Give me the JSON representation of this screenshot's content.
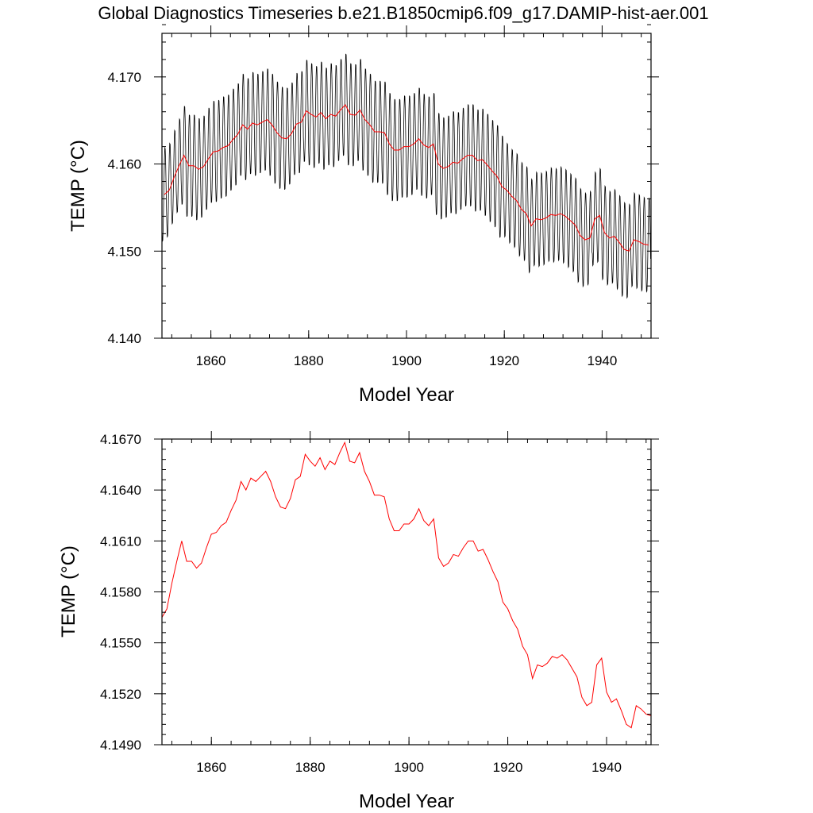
{
  "figure": {
    "title": "Global Diagnostics Timeseries b.e21.B1850cmip6.f09_g17.DAMIP-hist-aer.001"
  },
  "colors": {
    "monthly_series": "#000000",
    "annual_series": "#ff0000",
    "frame": "#000000",
    "background": "#ffffff"
  },
  "chart_data": [
    {
      "type": "line",
      "title": "",
      "xlabel": "Model Year",
      "ylabel": "TEMP (°C)",
      "xlim": [
        1850,
        1950
      ],
      "ylim": [
        4.14,
        4.175
      ],
      "x_ticks": [
        1860,
        1880,
        1900,
        1920,
        1940
      ],
      "x_tick_labels": [
        "1860",
        "1880",
        "1900",
        "1920",
        "1940"
      ],
      "y_ticks": [
        4.14,
        4.15,
        4.16,
        4.17
      ],
      "y_tick_labels": [
        "4.140",
        "4.150",
        "4.160",
        "4.170"
      ],
      "y_minor_step": 0.002,
      "x_minor_step": 4,
      "grid": false,
      "series": [
        {
          "style": "monthly",
          "color": "#000000",
          "amplitude_by_year": [
            0.0055,
            0.0055,
            0.0055,
            0.0055,
            0.0058,
            0.006,
            0.006,
            0.006,
            0.006,
            0.006,
            0.006,
            0.006,
            0.006,
            0.006,
            0.006,
            0.006,
            0.006,
            0.006,
            0.006,
            0.006,
            0.006,
            0.006,
            0.006,
            0.006,
            0.006,
            0.006,
            0.006,
            0.006,
            0.006,
            0.006,
            0.006,
            0.006,
            0.006,
            0.006,
            0.006,
            0.006,
            0.006,
            0.006,
            0.006,
            0.006,
            0.006,
            0.006,
            0.006,
            0.006,
            0.006,
            0.006,
            0.006,
            0.006,
            0.006,
            0.006,
            0.006,
            0.006,
            0.006,
            0.006,
            0.006,
            0.006,
            0.006,
            0.006,
            0.006,
            0.006,
            0.006,
            0.006,
            0.006,
            0.006,
            0.006,
            0.006,
            0.006,
            0.006,
            0.006,
            0.006,
            0.0055,
            0.0055,
            0.0055,
            0.0055,
            0.0055,
            0.0055,
            0.0055,
            0.0055,
            0.0055,
            0.0055,
            0.0055,
            0.0055,
            0.0055,
            0.0055,
            0.0055,
            0.0055,
            0.0055,
            0.0055,
            0.0055,
            0.0055,
            0.0055,
            0.0055,
            0.0055,
            0.0055,
            0.0055,
            0.0055,
            0.0055,
            0.0055,
            0.0055,
            0.0055
          ]
        },
        {
          "style": "annual",
          "color": "#ff0000"
        }
      ]
    },
    {
      "type": "line",
      "title": "",
      "xlabel": "Model Year",
      "ylabel": "TEMP (°C)",
      "xlim": [
        1850,
        1949
      ],
      "ylim": [
        4.149,
        4.167
      ],
      "x_ticks": [
        1860,
        1880,
        1900,
        1920,
        1940
      ],
      "x_tick_labels": [
        "1860",
        "1880",
        "1900",
        "1920",
        "1940"
      ],
      "y_ticks": [
        4.149,
        4.152,
        4.155,
        4.158,
        4.161,
        4.164,
        4.167
      ],
      "y_tick_labels": [
        "4.1490",
        "4.1520",
        "4.1550",
        "4.1580",
        "4.1610",
        "4.1640",
        "4.1670"
      ],
      "y_minor_step": 0.0006,
      "x_minor_step": 4,
      "grid": false,
      "series": [
        {
          "style": "annual",
          "color": "#ff0000",
          "x": [
            1850,
            1851,
            1852,
            1853,
            1854,
            1855,
            1856,
            1857,
            1858,
            1859,
            1860,
            1861,
            1862,
            1863,
            1864,
            1865,
            1866,
            1867,
            1868,
            1869,
            1870,
            1871,
            1872,
            1873,
            1874,
            1875,
            1876,
            1877,
            1878,
            1879,
            1880,
            1881,
            1882,
            1883,
            1884,
            1885,
            1886,
            1887,
            1888,
            1889,
            1890,
            1891,
            1892,
            1893,
            1894,
            1895,
            1896,
            1897,
            1898,
            1899,
            1900,
            1901,
            1902,
            1903,
            1904,
            1905,
            1906,
            1907,
            1908,
            1909,
            1910,
            1911,
            1912,
            1913,
            1914,
            1915,
            1916,
            1917,
            1918,
            1919,
            1920,
            1921,
            1922,
            1923,
            1924,
            1925,
            1926,
            1927,
            1928,
            1929,
            1930,
            1931,
            1932,
            1933,
            1934,
            1935,
            1936,
            1937,
            1938,
            1939,
            1940,
            1941,
            1942,
            1943,
            1944,
            1945,
            1946,
            1947,
            1948,
            1949
          ],
          "values": [
            4.1565,
            4.157,
            4.1585,
            4.1598,
            4.161,
            4.1598,
            4.1598,
            4.1594,
            4.1597,
            4.1606,
            4.1614,
            4.1615,
            4.1619,
            4.1621,
            4.1628,
            4.1634,
            4.1645,
            4.164,
            4.1647,
            4.1645,
            4.1648,
            4.1651,
            4.1645,
            4.1636,
            4.163,
            4.1629,
            4.1635,
            4.1646,
            4.1648,
            4.1661,
            4.1657,
            4.1654,
            4.1659,
            4.1652,
            4.1657,
            4.1655,
            4.1662,
            4.1668,
            4.1657,
            4.1656,
            4.1662,
            4.1651,
            4.1645,
            4.1637,
            4.1637,
            4.1636,
            4.1623,
            4.1616,
            4.1616,
            4.162,
            4.162,
            4.1623,
            4.1629,
            4.1622,
            4.1619,
            4.1623,
            4.16,
            4.1595,
            4.1597,
            4.1602,
            4.1601,
            4.1606,
            4.161,
            4.161,
            4.1604,
            4.1605,
            4.1599,
            4.1592,
            4.1586,
            4.1574,
            4.157,
            4.1563,
            4.1558,
            4.1548,
            4.1543,
            4.1529,
            4.1537,
            4.1536,
            4.1538,
            4.1542,
            4.1541,
            4.1543,
            4.154,
            4.1535,
            4.153,
            4.1518,
            4.1513,
            4.1515,
            4.1537,
            4.1541,
            4.1521,
            4.1515,
            4.1517,
            4.151,
            4.1502,
            4.15,
            4.1513,
            4.1511,
            4.1508,
            4.1507
          ]
        }
      ]
    }
  ]
}
